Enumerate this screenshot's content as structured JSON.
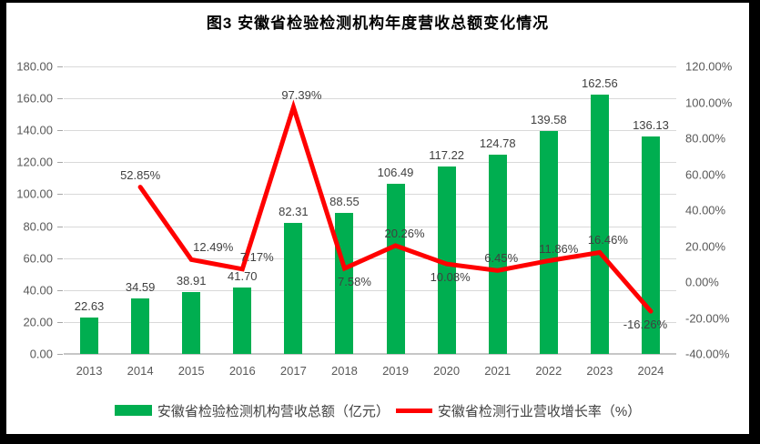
{
  "title": "图3 安徽省检验检测机构年度营收总额变化情况",
  "colors": {
    "bar": "#00AE50",
    "line": "#FF0000",
    "grid": "#D9D9D9",
    "axis_text": "#595959",
    "data_label_text": "#404040"
  },
  "legend": {
    "bar_label": "安徽省检验检测机构营收总额（亿元）",
    "line_label": "安徽省检测行业营收增长率（%）"
  },
  "chart_data": {
    "type": "bar+line combo",
    "title": "图3 安徽省检验检测机构年度营收总额变化情况",
    "categories": [
      "2013",
      "2014",
      "2015",
      "2016",
      "2017",
      "2018",
      "2019",
      "2020",
      "2021",
      "2022",
      "2023",
      "2024"
    ],
    "series": [
      {
        "name": "安徽省检验检测机构营收总额（亿元）",
        "type": "bar",
        "axis": "left",
        "values": [
          22.63,
          34.59,
          38.91,
          41.7,
          82.31,
          88.55,
          106.49,
          117.22,
          124.78,
          139.58,
          162.56,
          136.13
        ],
        "labels": [
          "22.63",
          "34.59",
          "38.91",
          "41.70",
          "82.31",
          "88.55",
          "106.49",
          "117.22",
          "124.78",
          "139.58",
          "162.56",
          "136.13"
        ]
      },
      {
        "name": "安徽省检测行业营收增长率（%）",
        "type": "line",
        "axis": "right",
        "values": [
          null,
          52.85,
          12.49,
          7.17,
          97.39,
          7.58,
          20.26,
          10.08,
          6.45,
          11.86,
          16.46,
          -16.26
        ],
        "labels": [
          null,
          "52.85%",
          "12.49%",
          "7.17%",
          "97.39%",
          "7.58%",
          "20.26%",
          "10.08%",
          "6.45%",
          "11.86%",
          "16.46%",
          "-16.26%"
        ],
        "label_positions": [
          null,
          "above",
          "above",
          "above",
          "above",
          "below",
          "above",
          "below",
          "above",
          "above",
          "above",
          "below"
        ]
      }
    ],
    "left_axis": {
      "min": 0,
      "max": 180,
      "step": 20,
      "ticks": [
        "180.00",
        "160.00",
        "140.00",
        "120.00",
        "100.00",
        "80.00",
        "60.00",
        "40.00",
        "20.00",
        "0.00"
      ]
    },
    "right_axis": {
      "min": -40,
      "max": 120,
      "step": 20,
      "ticks": [
        "120.00%",
        "100.00%",
        "80.00%",
        "60.00%",
        "40.00%",
        "20.00%",
        "0.00%",
        "-20.00%",
        "-40.00%"
      ]
    },
    "grid": "horizontal gridlines on",
    "legend_position": "bottom"
  }
}
